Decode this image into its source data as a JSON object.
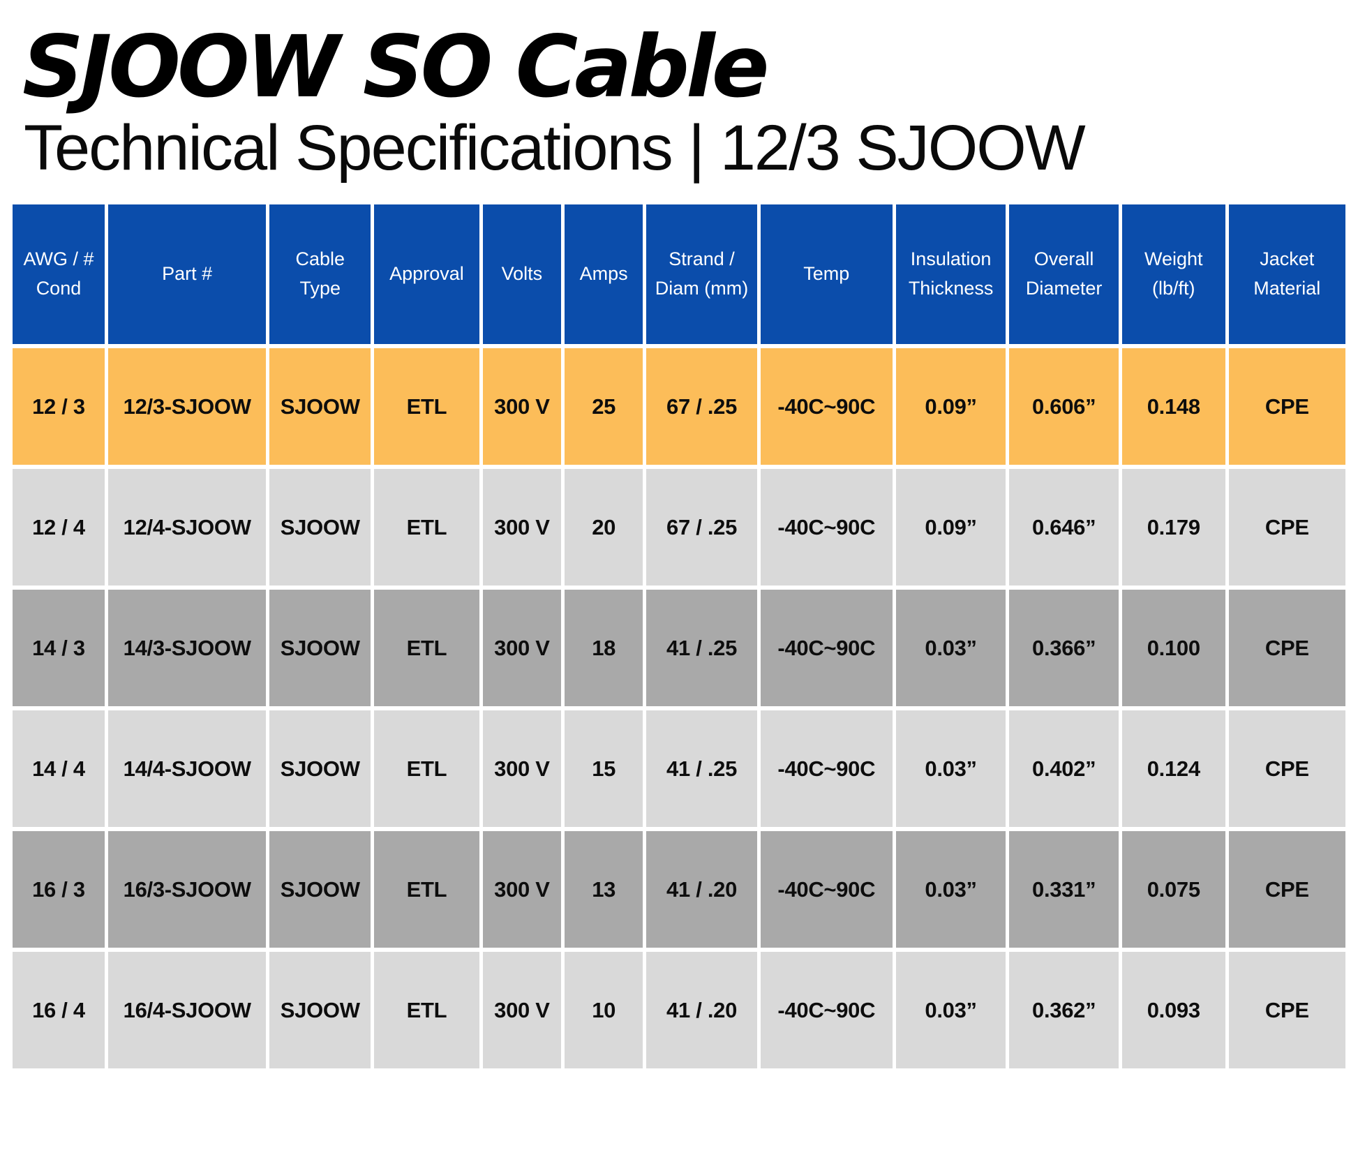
{
  "header": {
    "title": "SJOOW SO Cable",
    "subtitle": "Technical Specifications | 12/3 SJOOW"
  },
  "colors": {
    "header_bg": "#0b4dab",
    "header_text": "#ffffff",
    "highlight_row": "#fcbd59",
    "row_light": "#d9d9d9",
    "row_dark": "#a9a9a9",
    "cell_text": "#0d0d0d"
  },
  "table": {
    "columns": [
      "AWG / # Cond",
      "Part #",
      "Cable Type",
      "Approval",
      "Volts",
      "Amps",
      "Strand / Diam (mm)",
      "Temp",
      "Insulation Thickness",
      "Overall Diameter",
      "Weight (lb/ft)",
      "Jacket Material"
    ],
    "rows": [
      {
        "style": "orange",
        "cells": [
          "12 / 3",
          "12/3-SJOOW",
          "SJOOW",
          "ETL",
          "300 V",
          "25",
          "67 / .25",
          "-40C~90C",
          "0.09”",
          "0.606”",
          "0.148",
          "CPE"
        ]
      },
      {
        "style": "light",
        "cells": [
          "12 / 4",
          "12/4-SJOOW",
          "SJOOW",
          "ETL",
          "300 V",
          "20",
          "67 / .25",
          "-40C~90C",
          "0.09”",
          "0.646”",
          "0.179",
          "CPE"
        ]
      },
      {
        "style": "dark",
        "cells": [
          "14 / 3",
          "14/3-SJOOW",
          "SJOOW",
          "ETL",
          "300 V",
          "18",
          "41 / .25",
          "-40C~90C",
          "0.03”",
          "0.366”",
          "0.100",
          "CPE"
        ]
      },
      {
        "style": "light",
        "cells": [
          "14 / 4",
          "14/4-SJOOW",
          "SJOOW",
          "ETL",
          "300 V",
          "15",
          "41 / .25",
          "-40C~90C",
          "0.03”",
          "0.402”",
          "0.124",
          "CPE"
        ]
      },
      {
        "style": "dark",
        "cells": [
          "16 / 3",
          "16/3-SJOOW",
          "SJOOW",
          "ETL",
          "300 V",
          "13",
          "41 / .20",
          "-40C~90C",
          "0.03”",
          "0.331”",
          "0.075",
          "CPE"
        ]
      },
      {
        "style": "light",
        "cells": [
          "16 / 4",
          "16/4-SJOOW",
          "SJOOW",
          "ETL",
          "300 V",
          "10",
          "41 / .20",
          "-40C~90C",
          "0.03”",
          "0.362”",
          "0.093",
          "CPE"
        ]
      }
    ]
  }
}
